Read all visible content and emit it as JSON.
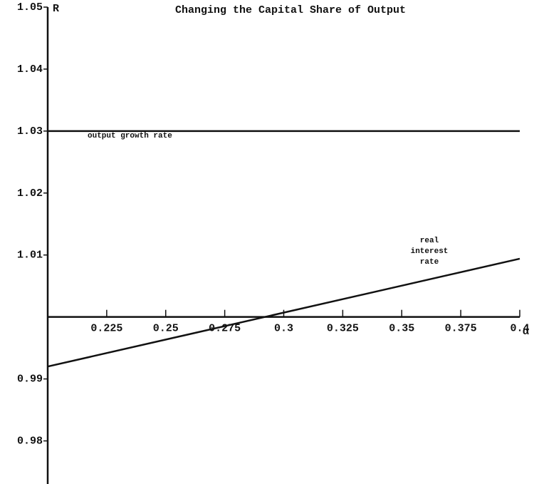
{
  "chart_data": {
    "type": "line",
    "title": "Changing the Capital Share of Output",
    "y_label": "R",
    "x_label": "α",
    "x": [
      0.2,
      0.4
    ],
    "series": [
      {
        "name": "output growth rate",
        "color": "#111111",
        "values": [
          1.03,
          1.03
        ]
      },
      {
        "name": "real interest rate",
        "color": "#111111",
        "values": [
          0.992,
          1.0094
        ]
      }
    ],
    "annotations": [
      [
        "output growth rate"
      ],
      [
        "real",
        "interest",
        "rate"
      ]
    ],
    "xlim": [
      0.2,
      0.4
    ],
    "xticks": [
      0.225,
      0.25,
      0.275,
      0.3,
      0.325,
      0.35,
      0.375,
      0.4
    ],
    "ylim": [
      0.975,
      1.05
    ],
    "yticks": [
      0.98,
      0.99,
      1.01,
      1.02,
      1.03,
      1.04,
      1.05
    ],
    "x_axis_at": 1.0
  }
}
